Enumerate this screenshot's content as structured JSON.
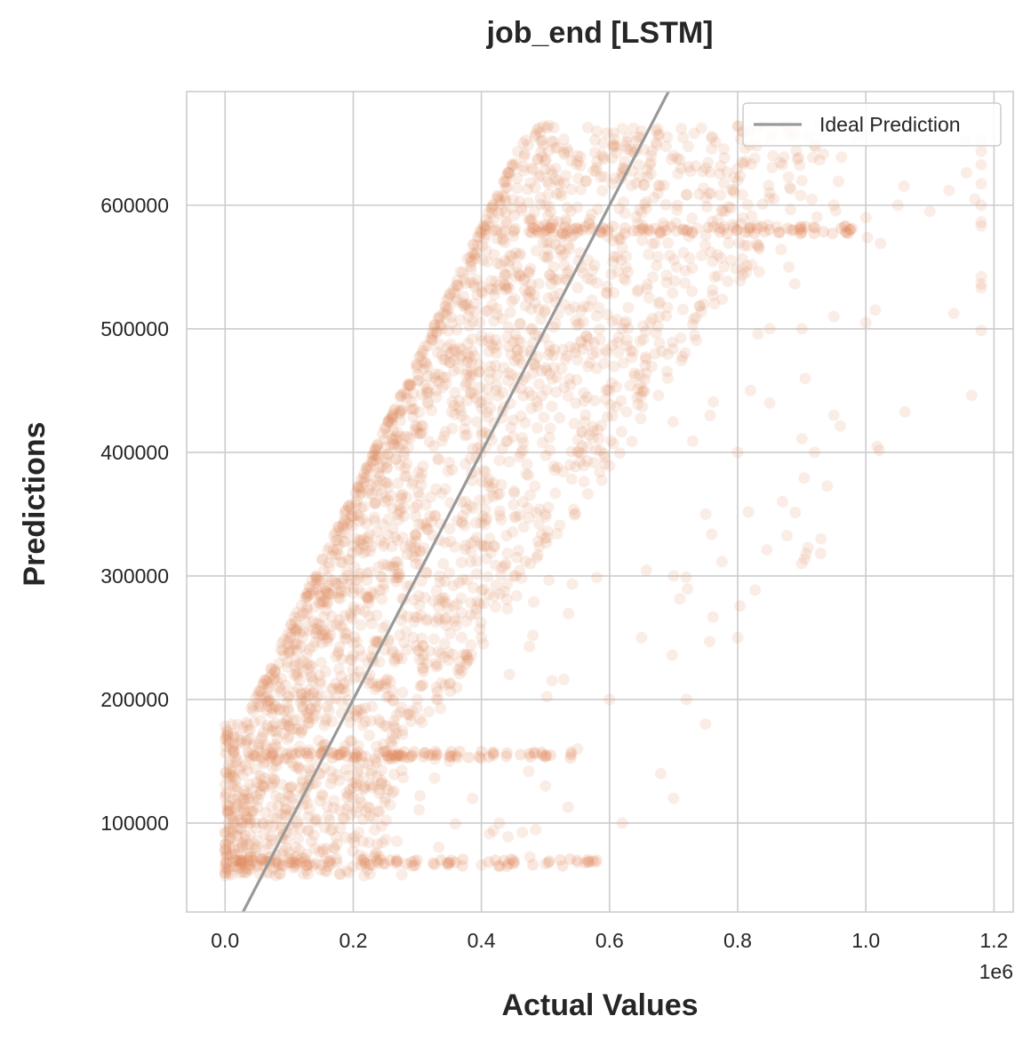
{
  "chart_data": {
    "type": "scatter",
    "title": "job_end [LSTM]",
    "xlabel": "Actual Values",
    "ylabel": "Predictions",
    "x_offset_label": "1e6",
    "xlim": [
      -0.06,
      1.23
    ],
    "ylim": [
      28000,
      692000
    ],
    "x_ticks": [
      0.0,
      0.2,
      0.4,
      0.6,
      0.8,
      1.0,
      1.2
    ],
    "x_tick_labels": [
      "0.0",
      "0.2",
      "0.4",
      "0.6",
      "0.8",
      "1.0",
      "1.2"
    ],
    "y_ticks": [
      100000,
      200000,
      300000,
      400000,
      500000,
      600000
    ],
    "y_tick_labels": [
      "100000",
      "200000",
      "300000",
      "400000",
      "500000",
      "600000"
    ],
    "grid": true,
    "legend": {
      "position": "top-right",
      "entries": [
        "Ideal Prediction"
      ]
    },
    "series": [
      {
        "name": "Ideal Prediction",
        "kind": "line",
        "color": "#999999",
        "x": [
          0.0,
          1.23
        ],
        "y": [
          0,
          1230000
        ]
      },
      {
        "name": "",
        "kind": "scatter",
        "color": "#e0895a",
        "alpha": 0.15,
        "note_density": "dense band: predictions rise with actual values, clipped between ~57000 and ~665000",
        "points": [
          [
            0.0,
            60000
          ],
          [
            0.01,
            75000
          ],
          [
            0.02,
            95000
          ],
          [
            0.03,
            110000
          ],
          [
            0.01,
            160000
          ],
          [
            0.02,
            170000
          ],
          [
            0.05,
            65000
          ],
          [
            0.08,
            70000
          ],
          [
            0.1,
            68000
          ],
          [
            0.12,
            72000
          ],
          [
            0.15,
            66000
          ],
          [
            0.2,
            65000
          ],
          [
            0.25,
            67000
          ],
          [
            0.3,
            70000
          ],
          [
            0.35,
            68000
          ],
          [
            0.4,
            66000
          ],
          [
            0.45,
            70000
          ],
          [
            0.5,
            67000
          ],
          [
            0.55,
            68000
          ],
          [
            0.58,
            70000
          ],
          [
            0.06,
            130000
          ],
          [
            0.08,
            150000
          ],
          [
            0.1,
            170000
          ],
          [
            0.12,
            200000
          ],
          [
            0.15,
            230000
          ],
          [
            0.18,
            260000
          ],
          [
            0.2,
            290000
          ],
          [
            0.22,
            320000
          ],
          [
            0.25,
            360000
          ],
          [
            0.28,
            400000
          ],
          [
            0.3,
            420000
          ],
          [
            0.33,
            450000
          ],
          [
            0.35,
            480000
          ],
          [
            0.38,
            510000
          ],
          [
            0.4,
            530000
          ],
          [
            0.42,
            560000
          ],
          [
            0.45,
            575000
          ],
          [
            0.5,
            600000
          ],
          [
            0.52,
            620000
          ],
          [
            0.55,
            640000
          ],
          [
            0.58,
            660000
          ],
          [
            0.62,
            662000
          ],
          [
            0.65,
            660000
          ],
          [
            0.7,
            640000
          ],
          [
            0.75,
            630000
          ],
          [
            0.8,
            620000
          ],
          [
            0.85,
            610000
          ],
          [
            0.9,
            620000
          ],
          [
            0.95,
            600000
          ],
          [
            1.0,
            590000
          ],
          [
            1.05,
            600000
          ],
          [
            1.1,
            595000
          ],
          [
            1.13,
            612000
          ],
          [
            1.17,
            605000
          ],
          [
            0.9,
            500000
          ],
          [
            0.95,
            510000
          ],
          [
            1.0,
            505000
          ],
          [
            0.85,
            440000
          ],
          [
            0.92,
            400000
          ],
          [
            0.95,
            430000
          ],
          [
            0.87,
            360000
          ],
          [
            0.93,
            330000
          ],
          [
            0.9,
            310000
          ],
          [
            0.8,
            250000
          ],
          [
            0.72,
            200000
          ],
          [
            0.75,
            180000
          ],
          [
            0.68,
            140000
          ],
          [
            0.7,
            120000
          ],
          [
            0.62,
            100000
          ],
          [
            0.5,
            130000
          ],
          [
            0.55,
            160000
          ],
          [
            0.6,
            200000
          ],
          [
            0.65,
            250000
          ],
          [
            0.7,
            300000
          ],
          [
            0.75,
            350000
          ],
          [
            0.8,
            400000
          ],
          [
            0.82,
            450000
          ],
          [
            0.85,
            500000
          ],
          [
            0.88,
            550000
          ],
          [
            0.9,
            580000
          ],
          [
            0.3,
            200000
          ],
          [
            0.4,
            250000
          ],
          [
            0.45,
            300000
          ],
          [
            0.5,
            350000
          ],
          [
            0.55,
            400000
          ],
          [
            0.6,
            450000
          ],
          [
            0.62,
            500000
          ],
          [
            0.2,
            150000
          ],
          [
            0.25,
            120000
          ],
          [
            0.35,
            150000
          ]
        ]
      }
    ]
  }
}
